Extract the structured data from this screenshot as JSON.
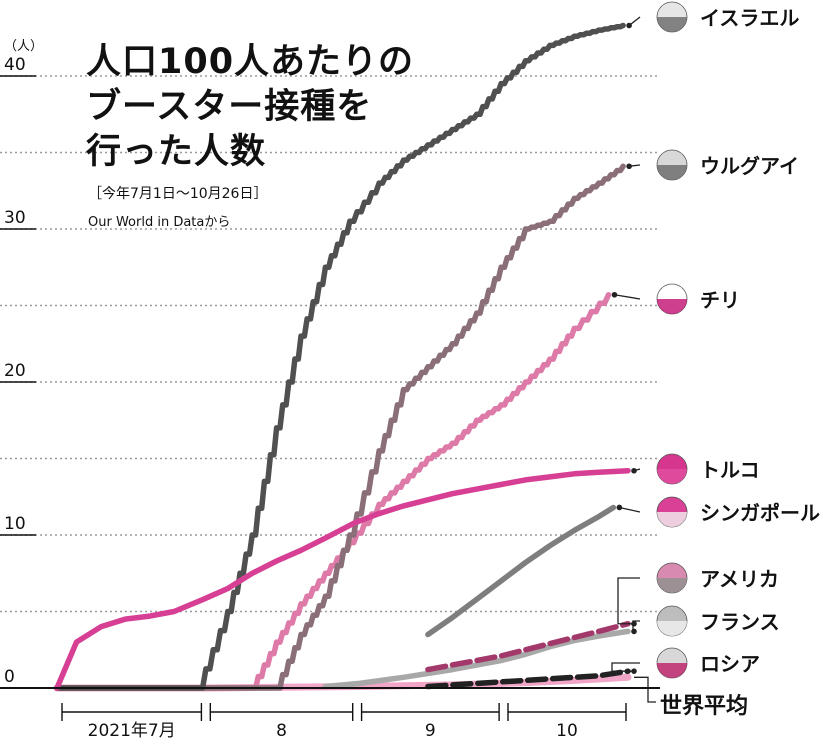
{
  "title_lines": [
    "人口100人あたりの",
    "ブースター接種を",
    "行った人数"
  ],
  "period": "［今年7月1日～10月26日］",
  "source": "Our World in Dataから",
  "chart_data": {
    "type": "line",
    "ylabel": "（人）",
    "ylim": [
      0,
      43
    ],
    "yticks": [
      0,
      10,
      20,
      30,
      40
    ],
    "xlim": [
      "2021-07-01",
      "2021-10-26"
    ],
    "x_month_labels": [
      {
        "label": "2021年7月",
        "start": "2021-07-01",
        "end": "2021-07-31"
      },
      {
        "label": "8",
        "start": "2021-08-01",
        "end": "2021-08-31"
      },
      {
        "label": "9",
        "start": "2021-09-01",
        "end": "2021-09-30"
      },
      {
        "label": "10",
        "start": "2021-10-01",
        "end": "2021-10-26"
      }
    ],
    "series": [
      {
        "name": "イスラエル",
        "color": "#505050",
        "icon": "israel-flag-icon",
        "x": [
          "2021-07-30",
          "2021-08-05",
          "2021-08-10",
          "2021-08-15",
          "2021-08-20",
          "2021-08-25",
          "2021-08-30",
          "2021-09-05",
          "2021-09-10",
          "2021-09-15",
          "2021-09-20",
          "2021-09-25",
          "2021-09-30",
          "2021-10-05",
          "2021-10-10",
          "2021-10-15",
          "2021-10-20",
          "2021-10-25"
        ],
        "values": [
          0,
          5,
          10,
          17,
          23,
          27.5,
          30.5,
          33,
          34.5,
          35.5,
          36.5,
          37.5,
          39.5,
          41,
          42,
          42.6,
          43,
          43.3
        ]
      },
      {
        "name": "ウルグアイ",
        "color": "#8a6f78",
        "icon": "uruguay-flag-icon",
        "x": [
          "2021-08-15",
          "2021-08-20",
          "2021-08-25",
          "2021-08-30",
          "2021-09-05",
          "2021-09-10",
          "2021-09-15",
          "2021-09-20",
          "2021-09-25",
          "2021-09-30",
          "2021-10-05",
          "2021-10-10",
          "2021-10-15",
          "2021-10-20",
          "2021-10-25"
        ],
        "values": [
          0,
          3.5,
          6,
          10,
          15.5,
          19.5,
          21,
          22.5,
          24.5,
          27.5,
          30,
          30.5,
          32,
          33,
          34.1
        ]
      },
      {
        "name": "チリ",
        "color": "#dd7aa8",
        "icon": "chile-flag-icon",
        "x": [
          "2021-08-10",
          "2021-08-15",
          "2021-08-20",
          "2021-08-25",
          "2021-08-30",
          "2021-09-05",
          "2021-09-10",
          "2021-09-15",
          "2021-09-20",
          "2021-09-25",
          "2021-09-30",
          "2021-10-05",
          "2021-10-10",
          "2021-10-15",
          "2021-10-22"
        ],
        "values": [
          0,
          3,
          5.5,
          7.5,
          9.5,
          12,
          13.5,
          15,
          16,
          17.5,
          18.5,
          20,
          21.5,
          23.5,
          25.7
        ]
      },
      {
        "name": "トルコ",
        "color": "#d63f93",
        "icon": "turkey-flag-icon",
        "x": [
          "2021-07-01",
          "2021-07-05",
          "2021-07-10",
          "2021-07-15",
          "2021-07-20",
          "2021-07-25",
          "2021-07-31",
          "2021-08-05",
          "2021-08-10",
          "2021-08-15",
          "2021-08-20",
          "2021-08-25",
          "2021-08-31",
          "2021-09-05",
          "2021-09-10",
          "2021-09-15",
          "2021-09-20",
          "2021-09-25",
          "2021-09-30",
          "2021-10-05",
          "2021-10-10",
          "2021-10-15",
          "2021-10-20",
          "2021-10-26"
        ],
        "values": [
          0,
          3,
          4,
          4.5,
          4.7,
          5,
          5.8,
          6.5,
          7.5,
          8.3,
          9,
          9.8,
          10.8,
          11.4,
          11.9,
          12.3,
          12.7,
          13,
          13.3,
          13.6,
          13.8,
          14,
          14.1,
          14.2
        ]
      },
      {
        "name": "シンガポール",
        "color": "#7e7e7e",
        "icon": "singapore-flag-icon",
        "x": [
          "2021-09-15",
          "2021-09-20",
          "2021-09-25",
          "2021-09-30",
          "2021-10-05",
          "2021-10-10",
          "2021-10-15",
          "2021-10-20",
          "2021-10-23"
        ],
        "values": [
          3.5,
          4.6,
          5.8,
          7,
          8.2,
          9.3,
          10.3,
          11.2,
          11.8
        ]
      },
      {
        "name": "アメリカ",
        "color": "#a3386b",
        "icon": "usa-flag-icon",
        "x": [
          "2021-09-15",
          "2021-09-20",
          "2021-09-25",
          "2021-09-30",
          "2021-10-05",
          "2021-10-10",
          "2021-10-15",
          "2021-10-20",
          "2021-10-26"
        ],
        "values": [
          1.2,
          1.5,
          1.8,
          2.1,
          2.5,
          2.9,
          3.3,
          3.7,
          4.2
        ]
      },
      {
        "name": "フランス",
        "color": "#a8a8a8",
        "icon": "france-flag-icon",
        "x": [
          "2021-08-25",
          "2021-09-01",
          "2021-09-10",
          "2021-09-20",
          "2021-09-30",
          "2021-10-05",
          "2021-10-10",
          "2021-10-15",
          "2021-10-20",
          "2021-10-26"
        ],
        "values": [
          0.1,
          0.3,
          0.7,
          1.2,
          1.8,
          2.2,
          2.7,
          3.1,
          3.4,
          3.7
        ]
      },
      {
        "name": "ロシア",
        "color": "#222222",
        "icon": "russia-flag-icon",
        "x": [
          "2021-09-15",
          "2021-09-25",
          "2021-10-05",
          "2021-10-15",
          "2021-10-20",
          "2021-10-26"
        ],
        "values": [
          0.1,
          0.3,
          0.5,
          0.7,
          0.8,
          1.1
        ]
      },
      {
        "name": "世界平均",
        "color": "#f1a6c8",
        "icon": "",
        "x": [
          "2021-07-01",
          "2021-08-01",
          "2021-09-01",
          "2021-09-20",
          "2021-10-05",
          "2021-10-15",
          "2021-10-26"
        ],
        "values": [
          0,
          0,
          0.1,
          0.2,
          0.35,
          0.5,
          0.7
        ]
      }
    ]
  },
  "colors": {
    "israel": "#505050",
    "uruguay": "#8a6f78",
    "chile": "#dd7aa8",
    "turkey": "#d63f93",
    "singapore": "#7e7e7e",
    "usa": "#a3386b",
    "france": "#a8a8a8",
    "russia": "#222222",
    "world": "#f1a6c8"
  }
}
